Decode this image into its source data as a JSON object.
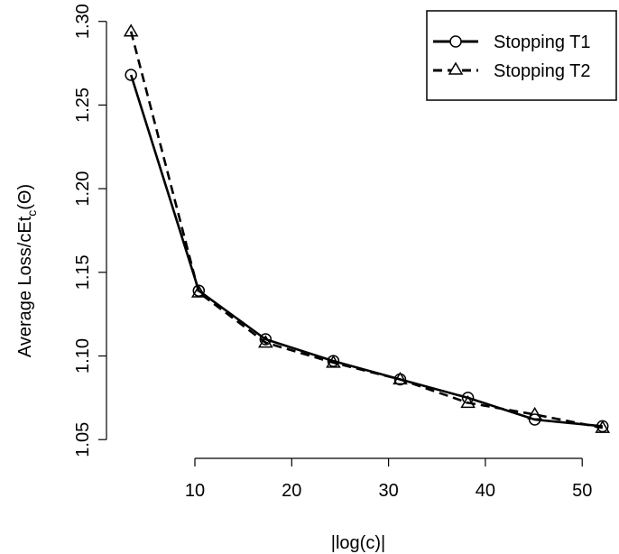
{
  "chart_data": {
    "type": "line",
    "title": "",
    "xlabel": "|log(c)|",
    "ylabel": {
      "main": "Average Loss/cEt",
      "subscript": "c",
      "suffix": "(Θ)"
    },
    "xlim": [
      1.8,
      53.8
    ],
    "ylim": [
      1.0485,
      1.302
    ],
    "xticks": [
      10,
      20,
      30,
      40,
      50
    ],
    "yticks": [
      1.05,
      1.1,
      1.15,
      1.2,
      1.25,
      1.3
    ],
    "ytick_labels": [
      "1.05",
      "1.10",
      "1.15",
      "1.20",
      "1.25",
      "1.30"
    ],
    "grid": false,
    "legend_position": "top-right",
    "series": [
      {
        "name": "Stopping T1",
        "line_style": "solid",
        "marker": "circle",
        "x": [
          3.4,
          10.4,
          17.3,
          24.3,
          31.2,
          38.2,
          45.1,
          52.1
        ],
        "y": [
          1.268,
          1.139,
          1.11,
          1.097,
          1.086,
          1.075,
          1.062,
          1.058
        ]
      },
      {
        "name": "Stopping T2",
        "line_style": "dashed",
        "marker": "triangle",
        "x": [
          3.4,
          10.4,
          17.3,
          24.3,
          31.2,
          38.2,
          45.1,
          52.1
        ],
        "y": [
          1.294,
          1.138,
          1.108,
          1.096,
          1.086,
          1.072,
          1.065,
          1.057
        ]
      }
    ]
  }
}
